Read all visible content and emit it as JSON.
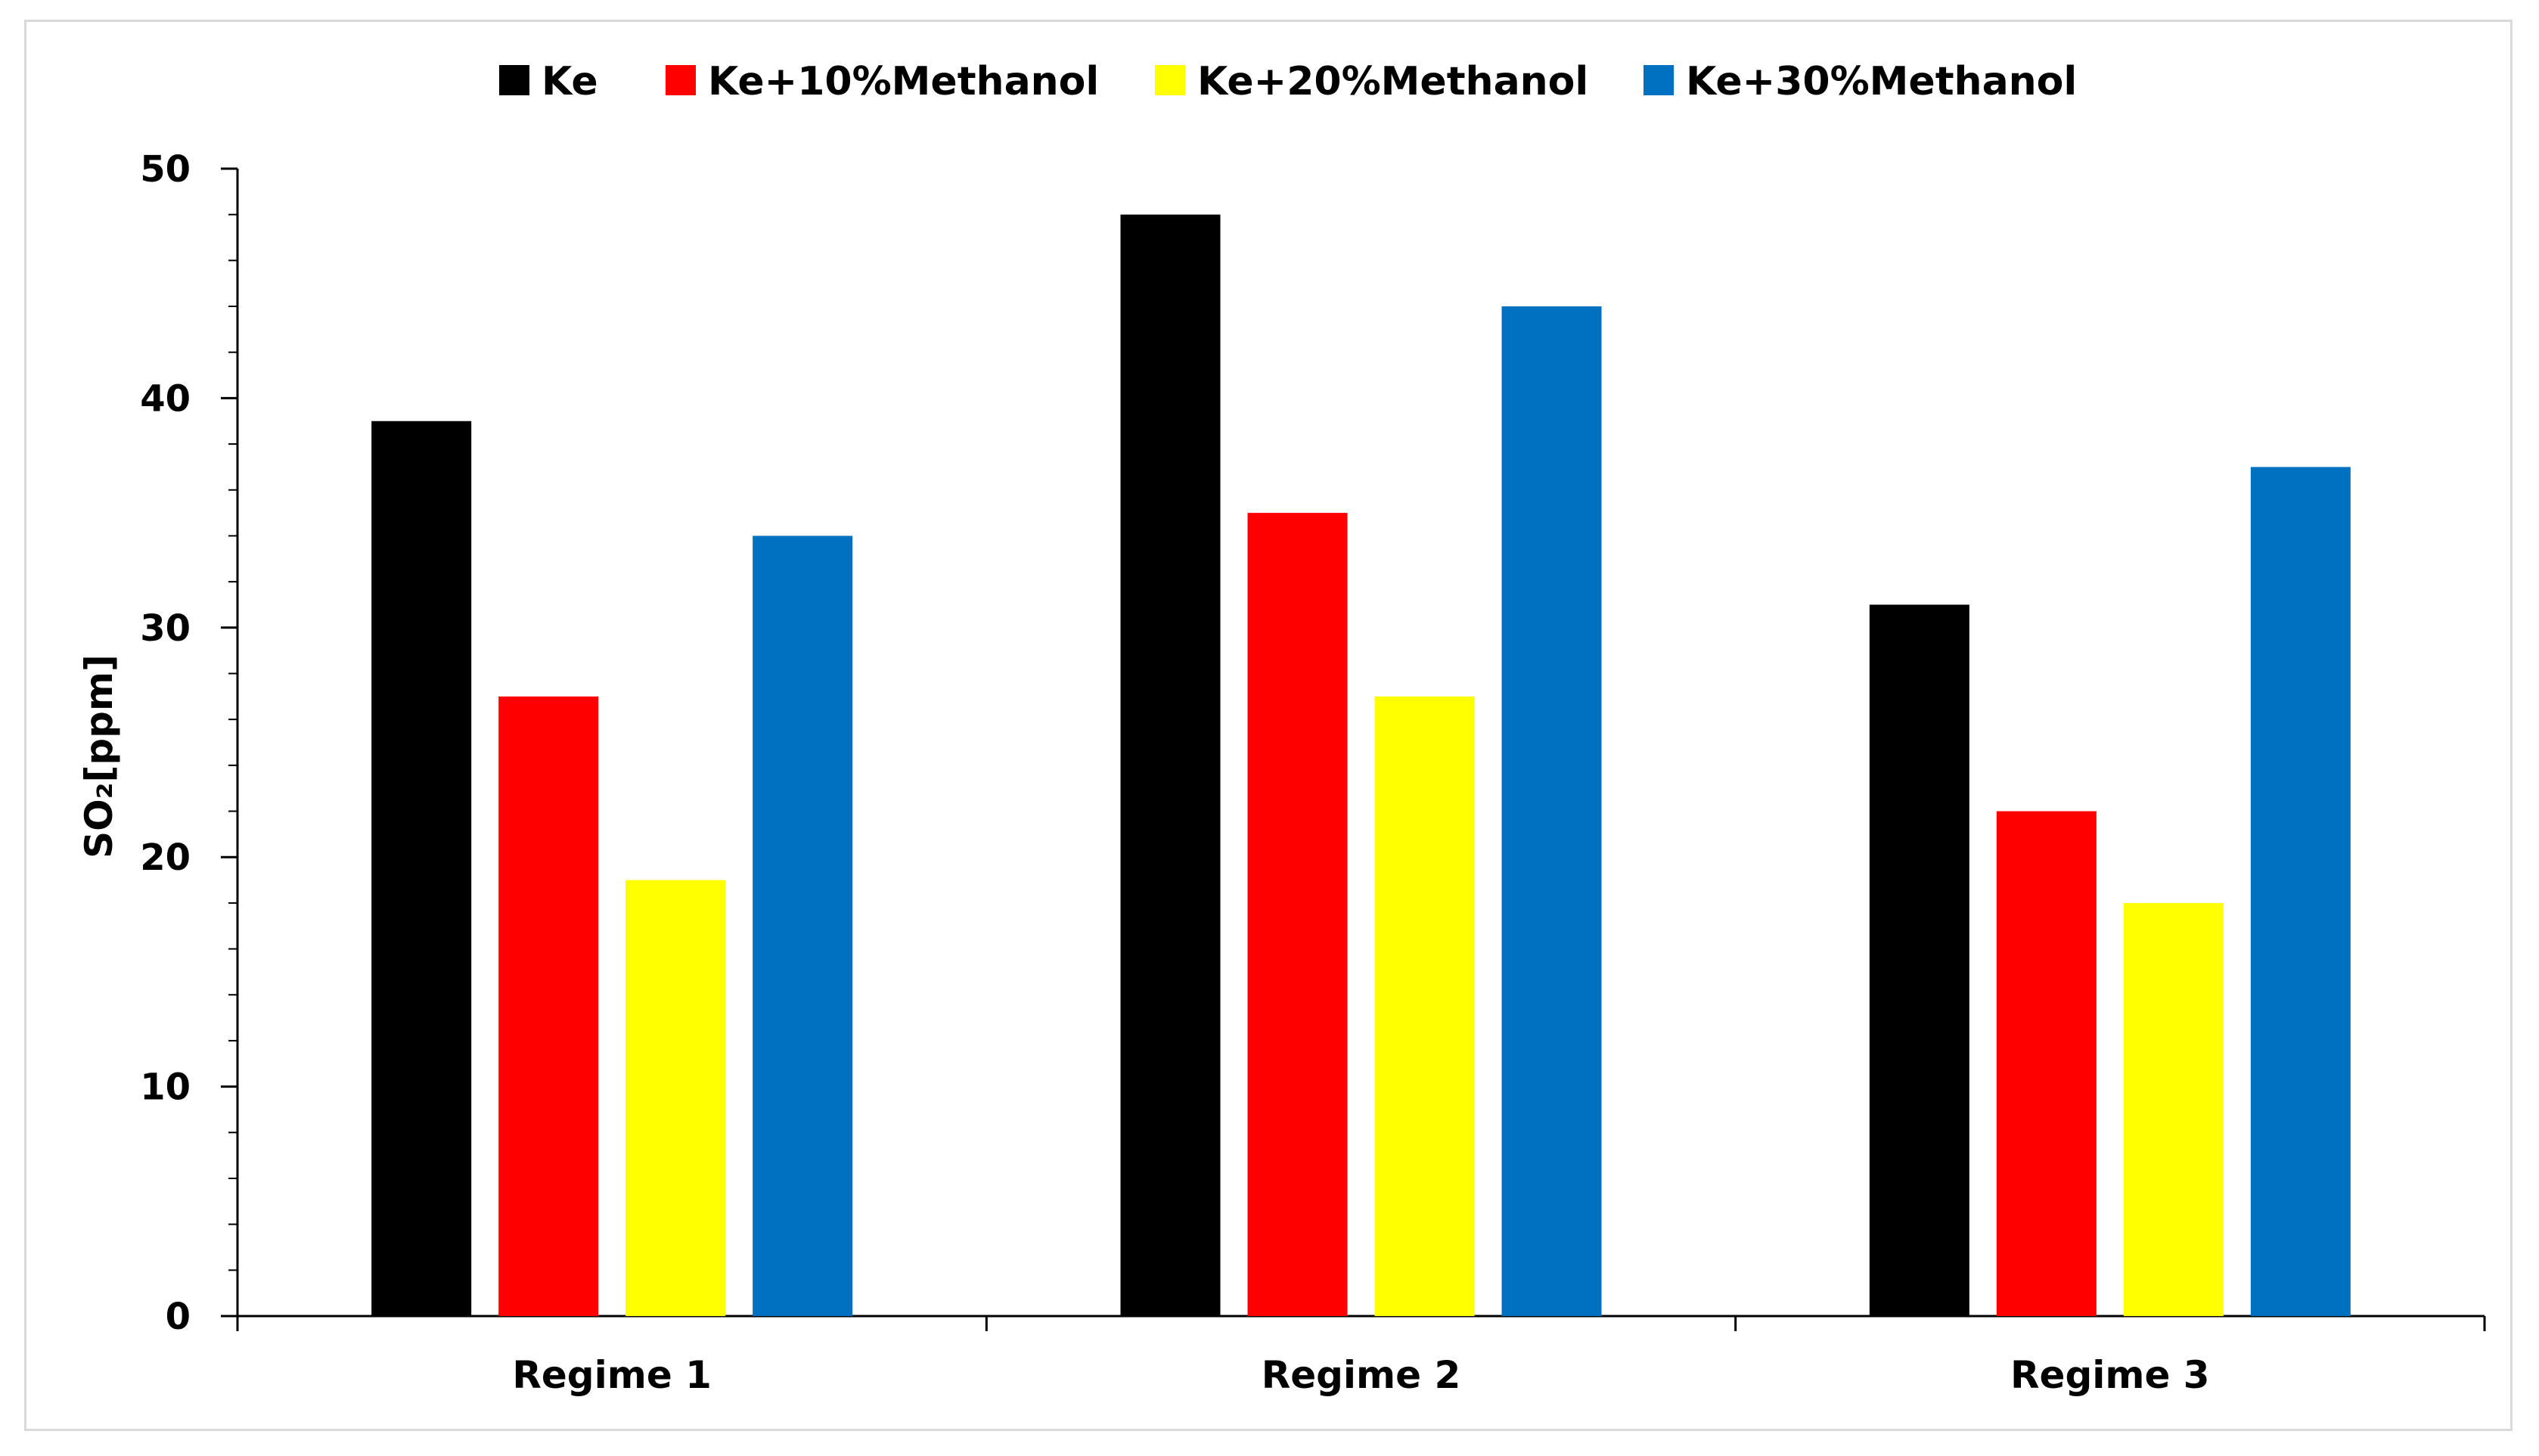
{
  "chart_data": {
    "type": "bar",
    "title": "",
    "xlabel": "",
    "ylabel": "SO₂[ppm]",
    "categories": [
      "Regime 1",
      "Regime 2",
      "Regime 3"
    ],
    "series": [
      {
        "name": "Ke",
        "color": "#000000",
        "values": [
          39,
          48,
          31
        ]
      },
      {
        "name": "Ke+10%Methanol",
        "color": "#ff0000",
        "values": [
          27,
          35,
          22
        ]
      },
      {
        "name": "Ke+20%Methanol",
        "color": "#ffff00",
        "values": [
          19,
          27,
          18
        ]
      },
      {
        "name": "Ke+30%Methanol",
        "color": "#0070c0",
        "values": [
          34,
          44,
          37
        ]
      }
    ],
    "ylim": [
      0,
      50
    ],
    "yticks": [
      0,
      10,
      20,
      30,
      40,
      50
    ],
    "grid": false,
    "legend_position": "top"
  }
}
